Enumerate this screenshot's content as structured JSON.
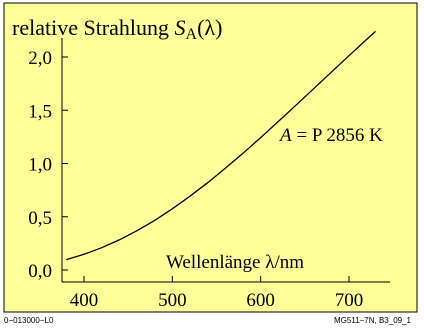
{
  "chart_data": {
    "type": "line",
    "title": {
      "prefix": "relative Strahlung ",
      "symbol": "S",
      "subscript": "A",
      "suffix": "(λ)"
    },
    "xlabel": "Wellenlänge λ/nm",
    "annotation": {
      "symbol": "A",
      "text": " = P 2856 K"
    },
    "xlim": [
      380,
      730
    ],
    "ylim": [
      0.0,
      2.2
    ],
    "xticks": [
      400,
      500,
      600,
      700
    ],
    "xtick_labels": [
      "400",
      "500",
      "600",
      "700"
    ],
    "yticks": [
      0.0,
      0.5,
      1.0,
      1.5,
      2.0
    ],
    "ytick_labels": [
      "0,0",
      "0,5",
      "1,0",
      "1,5",
      "2,0"
    ],
    "grid": false,
    "series": [
      {
        "x": [
          380,
          400,
          420,
          440,
          460,
          480,
          500,
          520,
          540,
          560,
          580,
          600,
          620,
          640,
          660,
          680,
          700,
          720,
          730
        ],
        "y": [
          0.098,
          0.147,
          0.209,
          0.283,
          0.369,
          0.466,
          0.575,
          0.693,
          0.82,
          0.955,
          1.096,
          1.243,
          1.394,
          1.547,
          1.702,
          1.857,
          2.012,
          2.165,
          2.24
        ]
      }
    ],
    "colors": {
      "background": "#ffff99",
      "line": "#000000"
    }
  },
  "footer": {
    "left": "0−013000−L0",
    "right": "MG511−7N, B3_09_1"
  }
}
